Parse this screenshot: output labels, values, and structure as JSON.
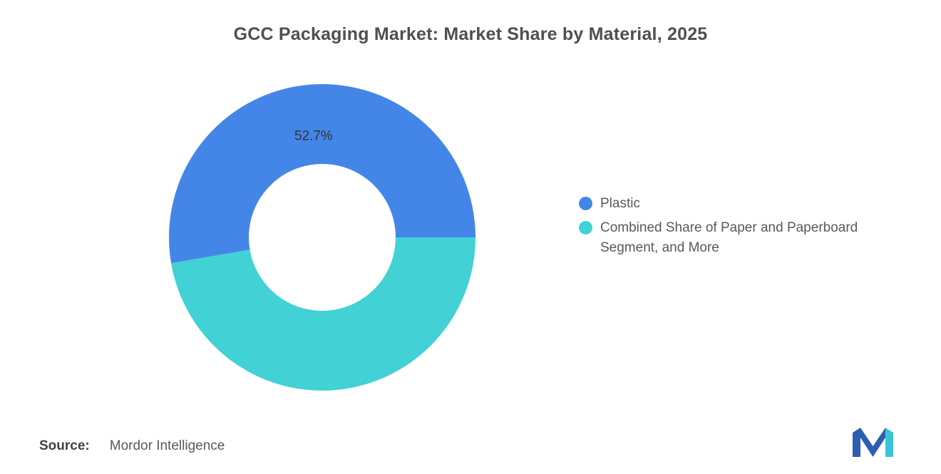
{
  "title": "GCC Packaging Market: Market Share by Material, 2025",
  "chart_data": {
    "type": "pie",
    "subtype": "donut",
    "title": "GCC Packaging Market: Market Share by Material, 2025",
    "unit": "%",
    "slices": [
      {
        "label": "Plastic",
        "value": 52.7,
        "color": "#4486e8",
        "data_label": "52.7%"
      },
      {
        "label": "Combined Share of Paper and Paperboard Segment, and More",
        "value": 47.3,
        "color": "#42d1d4",
        "data_label": ""
      }
    ],
    "start_angle_deg": 260.28,
    "direction": "clockwise",
    "inner_radius_ratio": 0.48,
    "legend_position": "right",
    "data_label_color": "#333333"
  },
  "legend": {
    "items": [
      {
        "label": "Plastic",
        "color": "#4486e8"
      },
      {
        "label": "Combined Share of Paper and Paperboard Segment, and More",
        "color": "#42d1d4"
      }
    ]
  },
  "source": {
    "label": "Source:",
    "value": "Mordor Intelligence"
  },
  "logo": {
    "name": "Mordor Intelligence",
    "blue": "#2b5fb0",
    "teal": "#38c5d8"
  }
}
